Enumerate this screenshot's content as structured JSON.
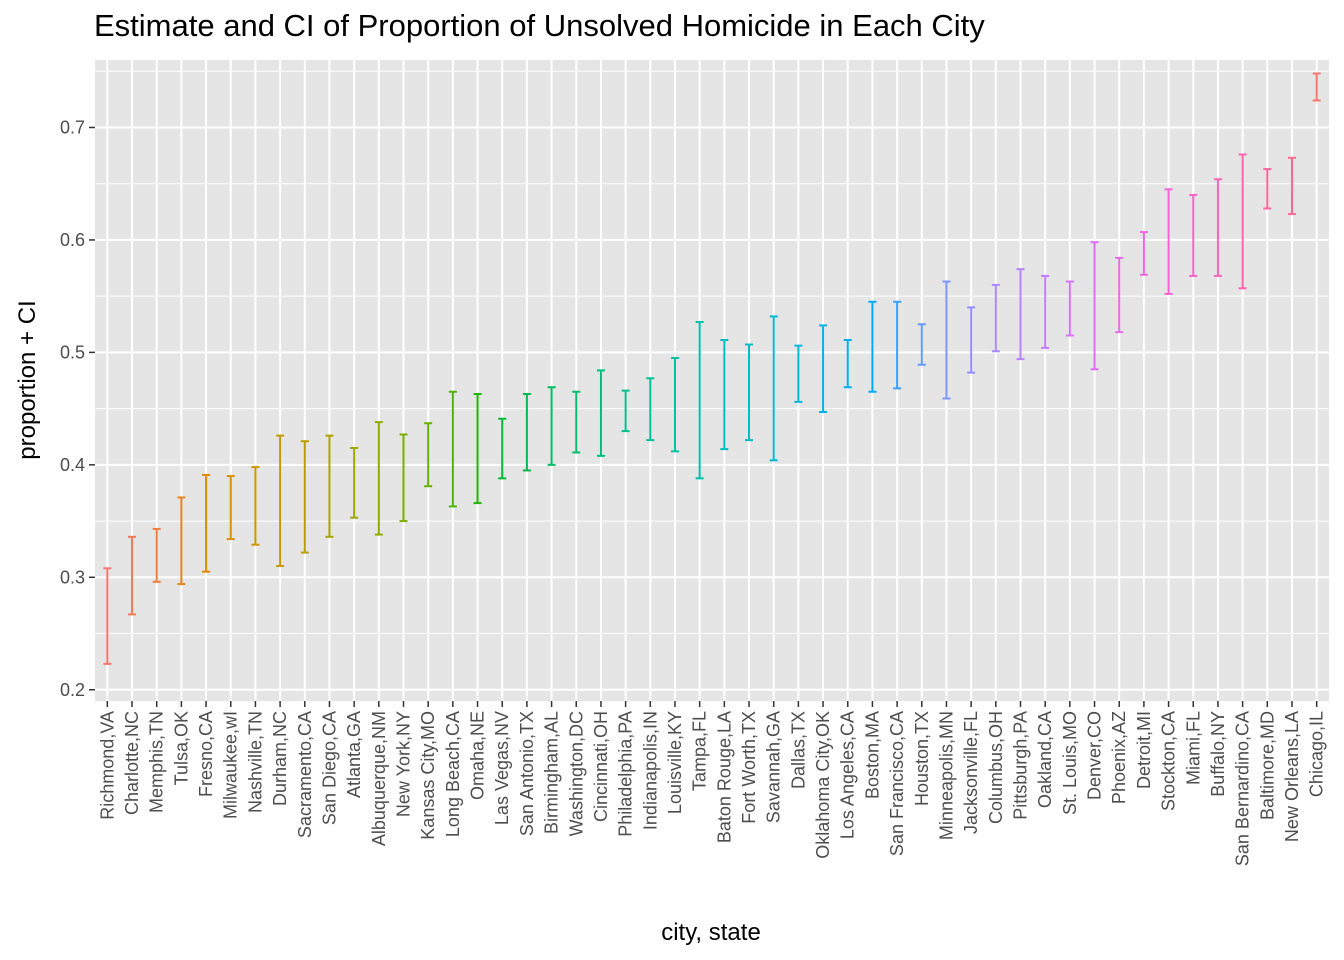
{
  "chart_data": {
    "type": "errorbar",
    "title": "Estimate and CI of Proportion of Unsolved Homicide in Each City",
    "xlabel": "city, state",
    "ylabel": "proportion + CI",
    "ylim": [
      0.19,
      0.76
    ],
    "yticks": [
      0.2,
      0.3,
      0.4,
      0.5,
      0.6,
      0.7
    ],
    "ytick_labels": [
      "0.2",
      "0.3",
      "0.4",
      "0.5",
      "0.6",
      "0.7"
    ],
    "grid": true,
    "legend": "none",
    "panel_background": "#e5e5e5",
    "grid_color": "#ffffff",
    "categories": [
      "Richmond,VA",
      "Charlotte,NC",
      "Memphis,TN",
      "Tulsa,OK",
      "Fresno,CA",
      "Milwaukee,wI",
      "Nashville,TN",
      "Durham,NC",
      "Sacramento,CA",
      "San Diego,CA",
      "Atlanta,GA",
      "Albuquerque,NM",
      "New York,NY",
      "Kansas City,MO",
      "Long Beach,CA",
      "Omaha,NE",
      "Las Vegas,NV",
      "San Antonio,TX",
      "Birmingham,AL",
      "Washington,DC",
      "Cincinnati,OH",
      "Philadelphia,PA",
      "Indianapolis,IN",
      "Louisville,KY",
      "Tampa,FL",
      "Baton Rouge,LA",
      "Fort Worth,TX",
      "Savannah,GA",
      "Dallas,TX",
      "Oklahoma City,OK",
      "Los Angeles,CA",
      "Boston,MA",
      "San Francisco,CA",
      "Houston,TX",
      "Minneapolis,MN",
      "Jacksonville,FL",
      "Columbus,OH",
      "Pittsburgh,PA",
      "Oakland,CA",
      "St. Louis,MO",
      "Denver,CO",
      "Phoenix,AZ",
      "Detroit,MI",
      "Stockton,CA",
      "Miami,FL",
      "Buffalo,NY",
      "San Bernardino,CA",
      "Baltimore,MD",
      "New Orleans,LA",
      "Chicago,IL"
    ],
    "lower": [
      0.223,
      0.267,
      0.296,
      0.294,
      0.305,
      0.334,
      0.329,
      0.31,
      0.322,
      0.336,
      0.353,
      0.338,
      0.35,
      0.381,
      0.363,
      0.366,
      0.388,
      0.395,
      0.4,
      0.411,
      0.408,
      0.43,
      0.422,
      0.412,
      0.388,
      0.414,
      0.422,
      0.404,
      0.456,
      0.447,
      0.469,
      0.465,
      0.468,
      0.489,
      0.459,
      0.482,
      0.501,
      0.494,
      0.504,
      0.515,
      0.485,
      0.518,
      0.569,
      0.552,
      0.568,
      0.568,
      0.557,
      0.628,
      0.623,
      0.724
    ],
    "upper": [
      0.308,
      0.336,
      0.343,
      0.371,
      0.391,
      0.39,
      0.398,
      0.426,
      0.421,
      0.426,
      0.415,
      0.438,
      0.427,
      0.437,
      0.465,
      0.463,
      0.441,
      0.463,
      0.469,
      0.465,
      0.484,
      0.466,
      0.477,
      0.495,
      0.527,
      0.511,
      0.507,
      0.532,
      0.506,
      0.524,
      0.511,
      0.545,
      0.545,
      0.525,
      0.563,
      0.54,
      0.56,
      0.574,
      0.568,
      0.563,
      0.598,
      0.584,
      0.607,
      0.645,
      0.64,
      0.654,
      0.676,
      0.663,
      0.673,
      0.748
    ],
    "colors": [
      "#F8766D",
      "#F47A56",
      "#EF7E3B",
      "#E88419",
      "#E18A00",
      "#D89000",
      "#CF9500",
      "#C49A00",
      "#B99E00",
      "#ACA300",
      "#9EA700",
      "#8EAB00",
      "#7CAE00",
      "#66B200",
      "#4CB500",
      "#1EB800",
      "#00BA38",
      "#00BB4E",
      "#00BD5F",
      "#00BE6F",
      "#00BF7D",
      "#00C08B",
      "#00C098",
      "#00C0A5",
      "#00C0B2",
      "#00BFBE",
      "#00BDC9",
      "#00BBD4",
      "#00B8DE",
      "#00B4E8",
      "#00AFF1",
      "#00A9FA",
      "#35A2FF",
      "#619CFF",
      "#7D96FF",
      "#948FFF",
      "#A889FF",
      "#B983FF",
      "#C77CFF",
      "#D375F9",
      "#DD70F1",
      "#E66BE8",
      "#EE67DE",
      "#F464D3",
      "#F863C7",
      "#FB62BA",
      "#FD63AC",
      "#FE659E",
      "#FC6990",
      "#F8766D"
    ]
  }
}
